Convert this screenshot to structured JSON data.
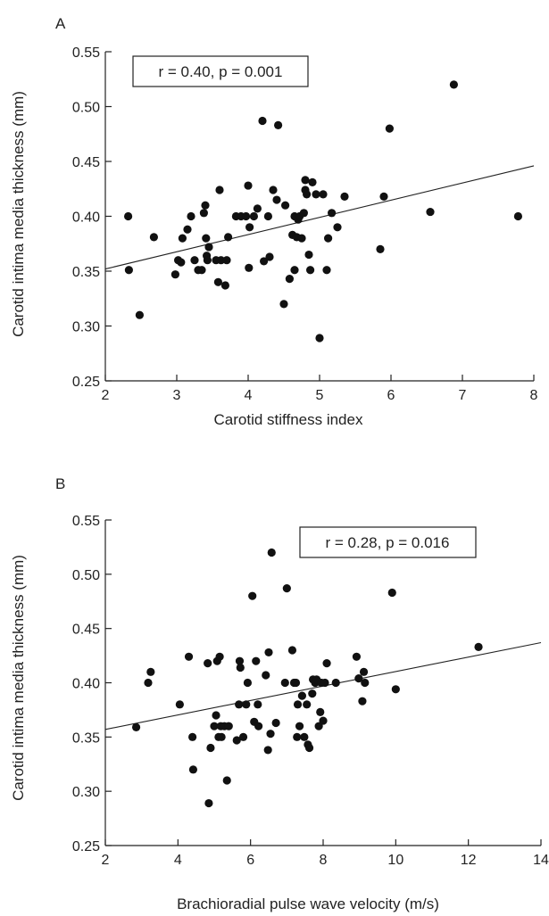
{
  "chart_data": [
    {
      "panel_label": "A",
      "type": "scatter",
      "xlabel": "Carotid stiffness index",
      "ylabel": "Carotid intima media thickness (mm)",
      "xlim": [
        2,
        8
      ],
      "ylim": [
        0.25,
        0.55
      ],
      "x_ticks": [
        "2",
        "3",
        "4",
        "5",
        "6",
        "7",
        "8"
      ],
      "y_ticks": [
        "0.25",
        "0.30",
        "0.35",
        "0.40",
        "0.45",
        "0.50",
        "0.55"
      ],
      "annotation": "r = 0.40, p = 0.001",
      "annotation_position": "top-left",
      "grid": false,
      "regression_line": {
        "x": [
          2,
          8
        ],
        "y": [
          0.352,
          0.446
        ]
      },
      "points": [
        [
          2.32,
          0.4
        ],
        [
          2.33,
          0.351
        ],
        [
          2.48,
          0.31
        ],
        [
          2.68,
          0.381
        ],
        [
          2.98,
          0.347
        ],
        [
          3.02,
          0.36
        ],
        [
          3.06,
          0.358
        ],
        [
          3.08,
          0.38
        ],
        [
          3.15,
          0.388
        ],
        [
          3.2,
          0.4
        ],
        [
          3.25,
          0.36
        ],
        [
          3.3,
          0.351
        ],
        [
          3.35,
          0.351
        ],
        [
          3.38,
          0.403
        ],
        [
          3.4,
          0.41
        ],
        [
          3.41,
          0.38
        ],
        [
          3.42,
          0.364
        ],
        [
          3.43,
          0.36
        ],
        [
          3.45,
          0.372
        ],
        [
          3.55,
          0.36
        ],
        [
          3.58,
          0.34
        ],
        [
          3.6,
          0.424
        ],
        [
          3.62,
          0.36
        ],
        [
          3.68,
          0.337
        ],
        [
          3.7,
          0.36
        ],
        [
          3.72,
          0.381
        ],
        [
          3.83,
          0.4
        ],
        [
          3.9,
          0.4
        ],
        [
          3.97,
          0.4
        ],
        [
          4.0,
          0.428
        ],
        [
          4.01,
          0.353
        ],
        [
          4.02,
          0.39
        ],
        [
          4.08,
          0.4
        ],
        [
          4.13,
          0.407
        ],
        [
          4.2,
          0.487
        ],
        [
          4.22,
          0.359
        ],
        [
          4.28,
          0.4
        ],
        [
          4.3,
          0.363
        ],
        [
          4.35,
          0.424
        ],
        [
          4.4,
          0.415
        ],
        [
          4.42,
          0.483
        ],
        [
          4.5,
          0.32
        ],
        [
          4.52,
          0.41
        ],
        [
          4.58,
          0.343
        ],
        [
          4.62,
          0.383
        ],
        [
          4.65,
          0.4
        ],
        [
          4.65,
          0.351
        ],
        [
          4.68,
          0.381
        ],
        [
          4.7,
          0.397
        ],
        [
          4.72,
          0.4
        ],
        [
          4.75,
          0.38
        ],
        [
          4.78,
          0.403
        ],
        [
          4.8,
          0.433
        ],
        [
          4.8,
          0.424
        ],
        [
          4.82,
          0.42
        ],
        [
          4.85,
          0.365
        ],
        [
          4.87,
          0.351
        ],
        [
          4.9,
          0.431
        ],
        [
          4.95,
          0.42
        ],
        [
          5.0,
          0.289
        ],
        [
          5.05,
          0.42
        ],
        [
          5.1,
          0.351
        ],
        [
          5.12,
          0.38
        ],
        [
          5.17,
          0.403
        ],
        [
          5.25,
          0.39
        ],
        [
          5.35,
          0.418
        ],
        [
          5.85,
          0.37
        ],
        [
          5.9,
          0.418
        ],
        [
          5.98,
          0.48
        ],
        [
          6.55,
          0.404
        ],
        [
          6.88,
          0.52
        ],
        [
          7.78,
          0.4
        ]
      ]
    },
    {
      "panel_label": "B",
      "type": "scatter",
      "xlabel": "Brachioradial pulse wave velocity (m/s)",
      "ylabel": "Carotid intima media thickness (mm)",
      "xlim": [
        2,
        14
      ],
      "ylim": [
        0.25,
        0.55
      ],
      "x_ticks": [
        "2",
        "4",
        "6",
        "8",
        "10",
        "12",
        "14"
      ],
      "y_ticks": [
        "0.25",
        "0.30",
        "0.35",
        "0.40",
        "0.45",
        "0.50",
        "0.55"
      ],
      "annotation": "r = 0.28, p = 0.016",
      "annotation_position": "top-right",
      "grid": false,
      "regression_line": {
        "x": [
          2,
          14
        ],
        "y": [
          0.357,
          0.437
        ]
      },
      "points": [
        [
          2.85,
          0.359
        ],
        [
          3.18,
          0.4
        ],
        [
          3.25,
          0.41
        ],
        [
          4.05,
          0.38
        ],
        [
          4.3,
          0.424
        ],
        [
          4.4,
          0.35
        ],
        [
          4.42,
          0.32
        ],
        [
          4.82,
          0.418
        ],
        [
          4.85,
          0.289
        ],
        [
          4.9,
          0.34
        ],
        [
          5.0,
          0.36
        ],
        [
          5.05,
          0.37
        ],
        [
          5.08,
          0.42
        ],
        [
          5.12,
          0.35
        ],
        [
          5.15,
          0.424
        ],
        [
          5.18,
          0.36
        ],
        [
          5.2,
          0.35
        ],
        [
          5.28,
          0.36
        ],
        [
          5.35,
          0.31
        ],
        [
          5.4,
          0.36
        ],
        [
          5.62,
          0.347
        ],
        [
          5.68,
          0.38
        ],
        [
          5.7,
          0.42
        ],
        [
          5.72,
          0.414
        ],
        [
          5.8,
          0.35
        ],
        [
          5.88,
          0.38
        ],
        [
          5.92,
          0.4
        ],
        [
          6.05,
          0.48
        ],
        [
          6.1,
          0.364
        ],
        [
          6.15,
          0.42
        ],
        [
          6.2,
          0.38
        ],
        [
          6.22,
          0.36
        ],
        [
          6.42,
          0.407
        ],
        [
          6.48,
          0.338
        ],
        [
          6.5,
          0.428
        ],
        [
          6.55,
          0.353
        ],
        [
          6.58,
          0.52
        ],
        [
          6.7,
          0.363
        ],
        [
          6.95,
          0.4
        ],
        [
          7.0,
          0.487
        ],
        [
          7.15,
          0.43
        ],
        [
          7.2,
          0.4
        ],
        [
          7.25,
          0.4
        ],
        [
          7.28,
          0.35
        ],
        [
          7.3,
          0.38
        ],
        [
          7.35,
          0.36
        ],
        [
          7.42,
          0.388
        ],
        [
          7.48,
          0.35
        ],
        [
          7.55,
          0.38
        ],
        [
          7.58,
          0.343
        ],
        [
          7.62,
          0.34
        ],
        [
          7.7,
          0.39
        ],
        [
          7.72,
          0.403
        ],
        [
          7.78,
          0.4
        ],
        [
          7.82,
          0.403
        ],
        [
          7.88,
          0.36
        ],
        [
          7.92,
          0.373
        ],
        [
          7.95,
          0.4
        ],
        [
          8.0,
          0.365
        ],
        [
          8.05,
          0.4
        ],
        [
          8.1,
          0.418
        ],
        [
          8.35,
          0.4
        ],
        [
          8.92,
          0.424
        ],
        [
          8.98,
          0.404
        ],
        [
          9.08,
          0.383
        ],
        [
          9.12,
          0.41
        ],
        [
          9.15,
          0.4
        ],
        [
          9.9,
          0.483
        ],
        [
          10.0,
          0.394
        ],
        [
          12.28,
          0.433
        ]
      ]
    }
  ]
}
